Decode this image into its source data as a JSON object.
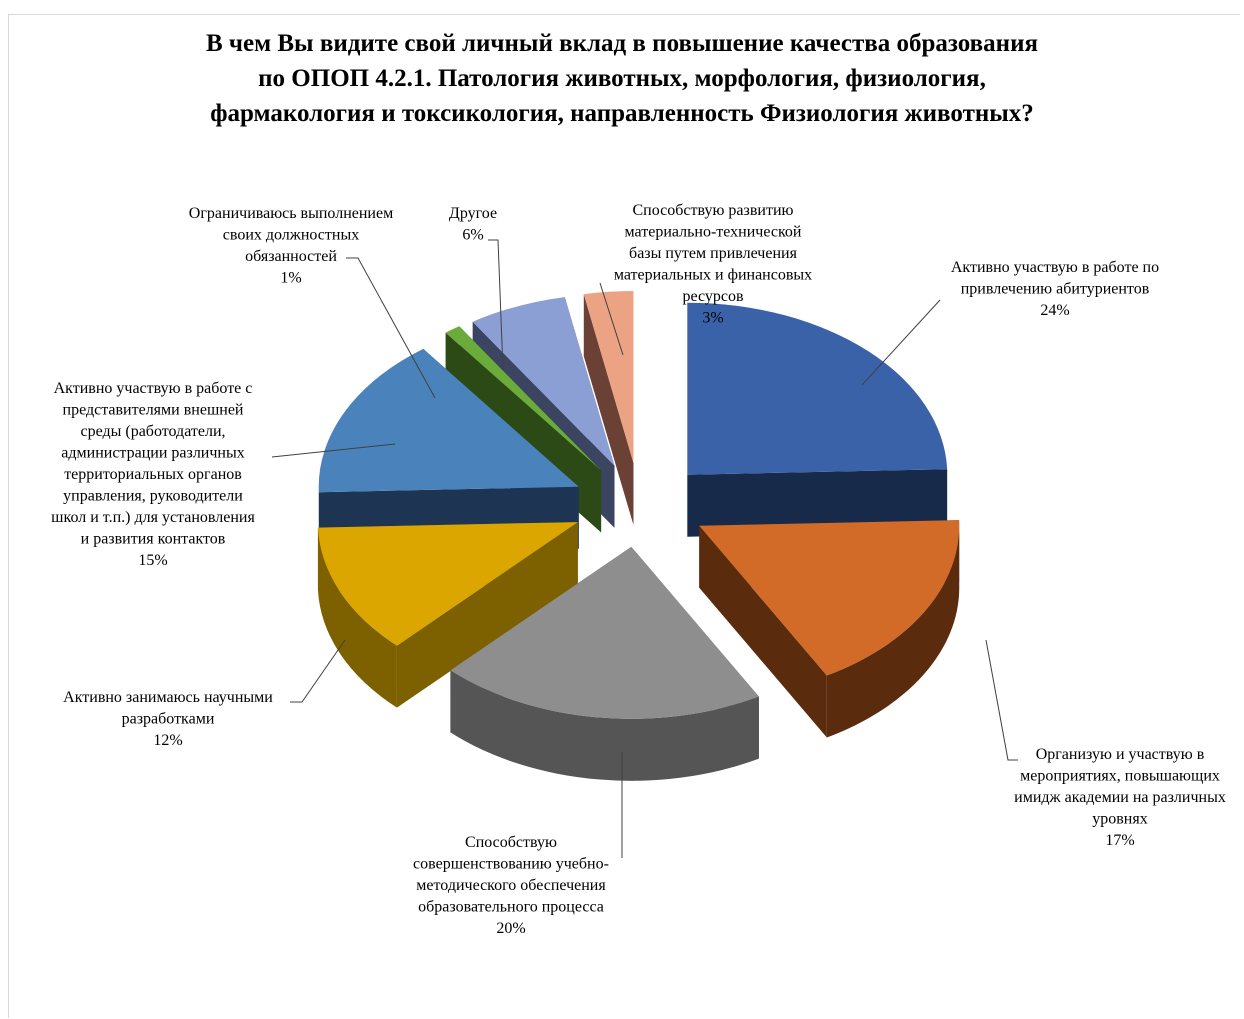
{
  "chart_data": {
    "type": "pie",
    "style": "3d-exploded",
    "title_lines": [
      "В чем Вы видите свой личный вклад в повышение качества образования",
      "по ОПОП 4.2.1. Патология животных, морфология, физиология,",
      "фармакология и токсикология, направленность Физиология животных?"
    ],
    "slices": [
      {
        "label_lines": [
          "Активно участвую  в работе по",
          "привлечению абитуриентов"
        ],
        "percent_label": "24%",
        "value": 24,
        "color": "#3a62a9",
        "side_color": "#182a4a"
      },
      {
        "label_lines": [
          "Организую и участвую  в",
          "мероприятиях, повышающих",
          "имидж академии на различных",
          "уровнях"
        ],
        "percent_label": "17%",
        "value": 17,
        "color": "#d16b27",
        "side_color": "#5b2b0d"
      },
      {
        "label_lines": [
          "Способствую",
          "совершенствованию учебно-",
          "методического обеспечения",
          "образовательного процесса"
        ],
        "percent_label": "20%",
        "value": 20,
        "color": "#8e8e8e",
        "side_color": "#555555"
      },
      {
        "label_lines": [
          "Активно занимаюсь научными",
          "разработками"
        ],
        "percent_label": "12%",
        "value": 12,
        "color": "#dca600",
        "side_color": "#7d6000"
      },
      {
        "label_lines": [
          "Активно участвую  в работе с",
          "представителями внешней",
          "среды (работодатели,",
          "администрации различных",
          "территориальных органов",
          "управления,  руководители",
          "школ и т.п.) для установления",
          "и развития контактов"
        ],
        "percent_label": "15%",
        "value": 15,
        "color": "#4a83bb",
        "side_color": "#1d3552"
      },
      {
        "label_lines": [
          "Ограничиваюсь выполнением",
          "своих должностных",
          "обязанностей"
        ],
        "percent_label": "1%",
        "value": 1,
        "color": "#6aab3b",
        "side_color": "#2b4a16"
      },
      {
        "label_lines": [
          "Другое"
        ],
        "percent_label": "6%",
        "value": 6,
        "color": "#8c9fd4",
        "side_color": "#3b4461"
      },
      {
        "label_lines": [
          "Способствую развитию",
          "материально-технической",
          "базы путем  привлечения",
          "материальных  и финансовых",
          "ресурсов"
        ],
        "percent_label": "3%",
        "value": 3,
        "color": "#eba384",
        "side_color": "#6b4035"
      }
    ]
  }
}
